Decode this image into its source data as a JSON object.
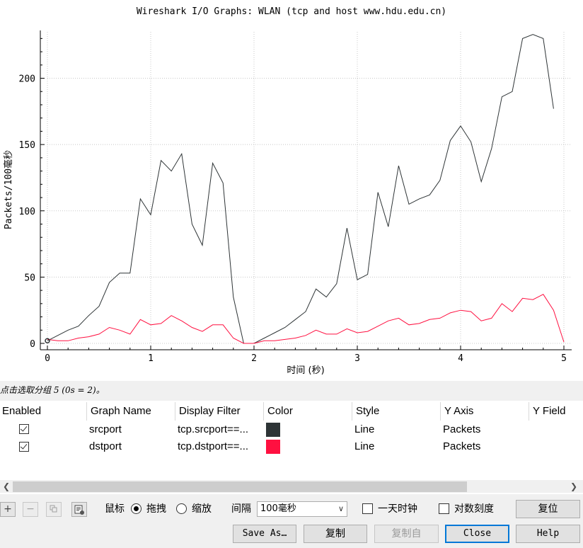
{
  "window": {
    "title": "Wireshark I/O Graphs: WLAN (tcp and host www.hdu.edu.cn)"
  },
  "chart_data": {
    "type": "line",
    "title": "Wireshark I/O Graphs: WLAN (tcp and host www.hdu.edu.cn)",
    "xlabel": "时间 (秒)",
    "ylabel": "Packets/100毫秒",
    "xlim": [
      0,
      5
    ],
    "ylim": [
      0,
      235
    ],
    "xticks": [
      0,
      1,
      2,
      3,
      4,
      5
    ],
    "yticks": [
      0,
      50,
      100,
      150,
      200
    ],
    "grid": true,
    "x": [
      0,
      0.1,
      0.2,
      0.3,
      0.4,
      0.5,
      0.6,
      0.7,
      0.8,
      0.9,
      1.0,
      1.1,
      1.2,
      1.3,
      1.4,
      1.5,
      1.6,
      1.7,
      1.8,
      1.9,
      2.0,
      2.1,
      2.2,
      2.3,
      2.4,
      2.5,
      2.6,
      2.7,
      2.8,
      2.9,
      3.0,
      3.1,
      3.2,
      3.3,
      3.4,
      3.5,
      3.6,
      3.7,
      3.8,
      3.9,
      4.0,
      4.1,
      4.2,
      4.3,
      4.4,
      4.5,
      4.6,
      4.7,
      4.8,
      4.9,
      5.0
    ],
    "series": [
      {
        "name": "srcport",
        "color": "#2e3436",
        "values": [
          2,
          6,
          10,
          13,
          21,
          28,
          46,
          53,
          53,
          109,
          97,
          138,
          130,
          143,
          90,
          74,
          136,
          121,
          35,
          0,
          0,
          4,
          8,
          12,
          18,
          24,
          41,
          35,
          45,
          87,
          48,
          52,
          114,
          88,
          134,
          105,
          109,
          112,
          123,
          153,
          164,
          152,
          122,
          147,
          186,
          190,
          230,
          233,
          230,
          177,
          null
        ]
      },
      {
        "name": "dstport",
        "color": "#ff1040",
        "values": [
          3,
          2,
          2,
          4,
          5,
          7,
          12,
          10,
          7,
          18,
          14,
          15,
          21,
          17,
          12,
          9,
          14,
          14,
          4,
          0,
          0,
          2,
          2,
          3,
          4,
          6,
          10,
          7,
          7,
          11,
          8,
          9,
          13,
          17,
          19,
          14,
          15,
          18,
          19,
          23,
          25,
          24,
          17,
          19,
          30,
          24,
          34,
          33,
          37,
          25,
          1
        ]
      }
    ],
    "marker_point": {
      "x": 0,
      "y": 2
    }
  },
  "status": {
    "text": "点击选取分组 5 (0s = 2)。"
  },
  "table": {
    "columns": [
      "Enabled",
      "Graph Name",
      "Display Filter",
      "Color",
      "Style",
      "Y Axis",
      "Y Field"
    ],
    "rows": [
      {
        "enabled": true,
        "name": "srcport",
        "filter": "tcp.srcport==...",
        "color": "#2e3436",
        "style": "Line",
        "yaxis": "Packets"
      },
      {
        "enabled": true,
        "name": "dstport",
        "filter": "tcp.dstport==...",
        "color": "#ff1040",
        "style": "Line",
        "yaxis": "Packets"
      }
    ]
  },
  "controls": {
    "add_icon": "plus-icon",
    "remove_icon": "minus-icon",
    "copy_icon": "copy-icon",
    "clear_icon": "clear-icon",
    "mouse_label": "鼠标",
    "drag_label": "拖拽",
    "drag_selected": true,
    "zoom_label": "缩放",
    "interval_label": "间隔",
    "interval_value": "100毫秒",
    "time_of_day_label": "一天时钟",
    "time_of_day_checked": false,
    "log_scale_label": "对数刻度",
    "log_scale_checked": false,
    "reset_button": "复位"
  },
  "buttons": {
    "save_as": "Save As…",
    "copy": "复制",
    "copy_from": "复制自",
    "close": "Close",
    "help": "Help"
  }
}
